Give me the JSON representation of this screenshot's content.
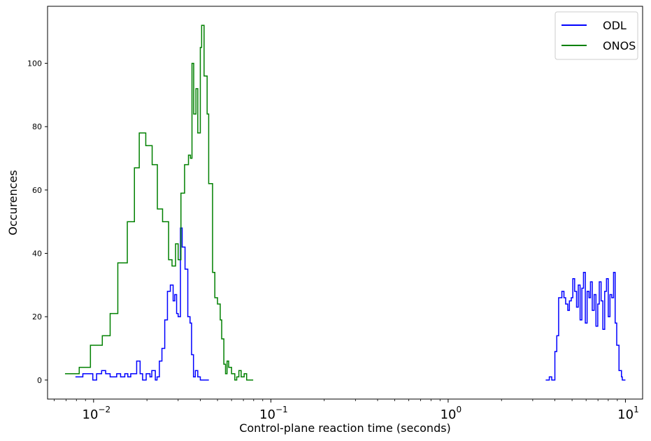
{
  "chart_data": {
    "type": "line",
    "xscale": "log",
    "xlim": [
      0.0055,
      12.5
    ],
    "ylim": [
      -6,
      118
    ],
    "xlabel": "Control-plane reaction time (seconds)",
    "ylabel": "Occurences",
    "x_ticks": [
      {
        "value": 0.01,
        "base": "10",
        "exp": "−2"
      },
      {
        "value": 0.1,
        "base": "10",
        "exp": "−1"
      },
      {
        "value": 1,
        "base": "10",
        "exp": "0"
      },
      {
        "value": 10,
        "base": "10",
        "exp": "1"
      }
    ],
    "y_ticks": [
      {
        "value": 0,
        "label": "0"
      },
      {
        "value": 20,
        "label": "20"
      },
      {
        "value": 40,
        "label": "40"
      },
      {
        "value": 60,
        "label": "60"
      },
      {
        "value": 80,
        "label": "80"
      },
      {
        "value": 100,
        "label": "100"
      }
    ],
    "grid": false,
    "legend_position": "top-right",
    "series": [
      {
        "name": "ODL",
        "color": "#0000ff",
        "step": "post",
        "groups": [
          {
            "points": [
              [
                0.0079,
                1
              ],
              [
                0.0087,
                2
              ],
              [
                0.0094,
                2
              ],
              [
                0.0099,
                0
              ],
              [
                0.0104,
                2
              ],
              [
                0.0111,
                3
              ],
              [
                0.0117,
                2
              ],
              [
                0.0124,
                1
              ],
              [
                0.0131,
                1
              ],
              [
                0.0135,
                2
              ],
              [
                0.0142,
                1
              ],
              [
                0.015,
                2
              ],
              [
                0.0156,
                1
              ],
              [
                0.0162,
                2
              ],
              [
                0.0169,
                2
              ],
              [
                0.0175,
                6
              ],
              [
                0.0183,
                2
              ],
              [
                0.0189,
                0
              ],
              [
                0.0198,
                2
              ],
              [
                0.0208,
                1
              ],
              [
                0.0213,
                3
              ],
              [
                0.0223,
                0
              ],
              [
                0.0228,
                1
              ],
              [
                0.0235,
                6
              ],
              [
                0.0243,
                10
              ],
              [
                0.0252,
                19
              ],
              [
                0.0261,
                28
              ],
              [
                0.0271,
                30
              ],
              [
                0.0281,
                25
              ],
              [
                0.0287,
                27
              ],
              [
                0.0294,
                21
              ],
              [
                0.03,
                20
              ],
              [
                0.0309,
                48
              ],
              [
                0.0316,
                42
              ],
              [
                0.0328,
                35
              ],
              [
                0.034,
                20
              ],
              [
                0.035,
                18
              ],
              [
                0.0357,
                8
              ],
              [
                0.0366,
                1
              ],
              [
                0.0375,
                3
              ],
              [
                0.0387,
                1
              ],
              [
                0.04,
                0
              ],
              [
                0.0424,
                0
              ],
              [
                0.0447,
                0
              ]
            ]
          },
          {
            "points": [
              [
                3.55,
                0
              ],
              [
                3.72,
                1
              ],
              [
                3.84,
                0
              ],
              [
                4.0,
                9
              ],
              [
                4.1,
                14
              ],
              [
                4.2,
                26
              ],
              [
                4.38,
                28
              ],
              [
                4.5,
                26
              ],
              [
                4.6,
                24
              ],
              [
                4.73,
                22
              ],
              [
                4.83,
                25
              ],
              [
                4.95,
                26
              ],
              [
                5.05,
                32
              ],
              [
                5.17,
                28
              ],
              [
                5.3,
                23
              ],
              [
                5.42,
                30
              ],
              [
                5.55,
                19
              ],
              [
                5.68,
                29
              ],
              [
                5.8,
                34
              ],
              [
                5.94,
                18
              ],
              [
                6.08,
                28
              ],
              [
                6.23,
                26
              ],
              [
                6.35,
                31
              ],
              [
                6.5,
                22
              ],
              [
                6.66,
                27
              ],
              [
                6.82,
                17
              ],
              [
                6.98,
                24
              ],
              [
                7.12,
                31
              ],
              [
                7.29,
                25
              ],
              [
                7.46,
                16
              ],
              [
                7.64,
                28
              ],
              [
                7.82,
                32
              ],
              [
                8.0,
                20
              ],
              [
                8.18,
                27
              ],
              [
                8.37,
                26
              ],
              [
                8.57,
                34
              ],
              [
                8.75,
                18
              ],
              [
                8.93,
                11
              ],
              [
                9.2,
                3
              ],
              [
                9.5,
                1
              ],
              [
                9.6,
                0
              ],
              [
                10.0,
                0
              ]
            ]
          }
        ]
      },
      {
        "name": "ONOS",
        "color": "#008000",
        "step": "post",
        "groups": [
          {
            "points": [
              [
                0.0069,
                2
              ],
              [
                0.0083,
                4
              ],
              [
                0.0096,
                11
              ],
              [
                0.0112,
                14
              ],
              [
                0.0124,
                21
              ],
              [
                0.0137,
                37
              ],
              [
                0.0155,
                50
              ],
              [
                0.017,
                67
              ],
              [
                0.0181,
                78
              ],
              [
                0.0197,
                74
              ],
              [
                0.0214,
                68
              ],
              [
                0.0229,
                54
              ],
              [
                0.0245,
                50
              ],
              [
                0.0265,
                38
              ],
              [
                0.0277,
                36
              ],
              [
                0.029,
                43
              ],
              [
                0.03,
                38
              ],
              [
                0.0311,
                59
              ],
              [
                0.0326,
                68
              ],
              [
                0.0343,
                71
              ],
              [
                0.0352,
                70
              ],
              [
                0.0359,
                100
              ],
              [
                0.0367,
                84
              ],
              [
                0.0378,
                92
              ],
              [
                0.0387,
                78
              ],
              [
                0.04,
                105
              ],
              [
                0.0407,
                112
              ],
              [
                0.042,
                96
              ],
              [
                0.0437,
                84
              ],
              [
                0.0446,
                62
              ],
              [
                0.0469,
                34
              ],
              [
                0.0483,
                26
              ],
              [
                0.05,
                24
              ],
              [
                0.0518,
                19
              ],
              [
                0.0528,
                13
              ],
              [
                0.0543,
                5
              ],
              [
                0.0555,
                2
              ],
              [
                0.0566,
                6
              ],
              [
                0.0578,
                4
              ],
              [
                0.0589,
                4
              ],
              [
                0.06,
                2
              ],
              [
                0.0626,
                0
              ],
              [
                0.0642,
                1
              ],
              [
                0.066,
                3
              ],
              [
                0.068,
                1
              ],
              [
                0.0707,
                2
              ],
              [
                0.073,
                0
              ],
              [
                0.0755,
                0
              ],
              [
                0.0795,
                0
              ]
            ]
          }
        ]
      }
    ]
  }
}
